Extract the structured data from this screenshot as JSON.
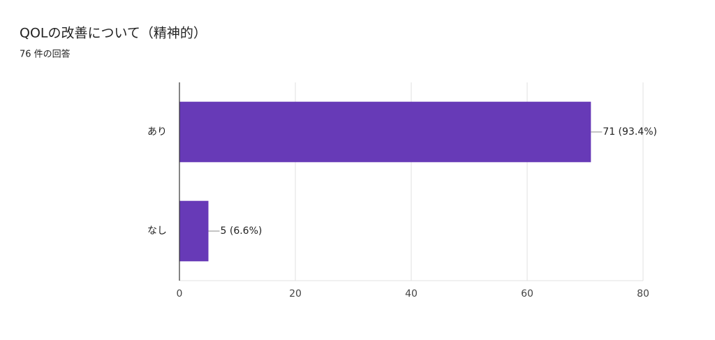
{
  "chart_data": {
    "type": "bar",
    "orientation": "horizontal",
    "title": "QOLの改善について（精神的）",
    "subtitle": "76 件の回答",
    "categories": [
      "あり",
      "なし"
    ],
    "values": [
      71,
      5
    ],
    "value_labels": [
      "71 (93.4%)",
      "5 (6.6%)"
    ],
    "color": "#673ab7",
    "xlim": [
      0,
      80
    ],
    "xticks": [
      0,
      20,
      40,
      60,
      80
    ],
    "grid": true
  }
}
